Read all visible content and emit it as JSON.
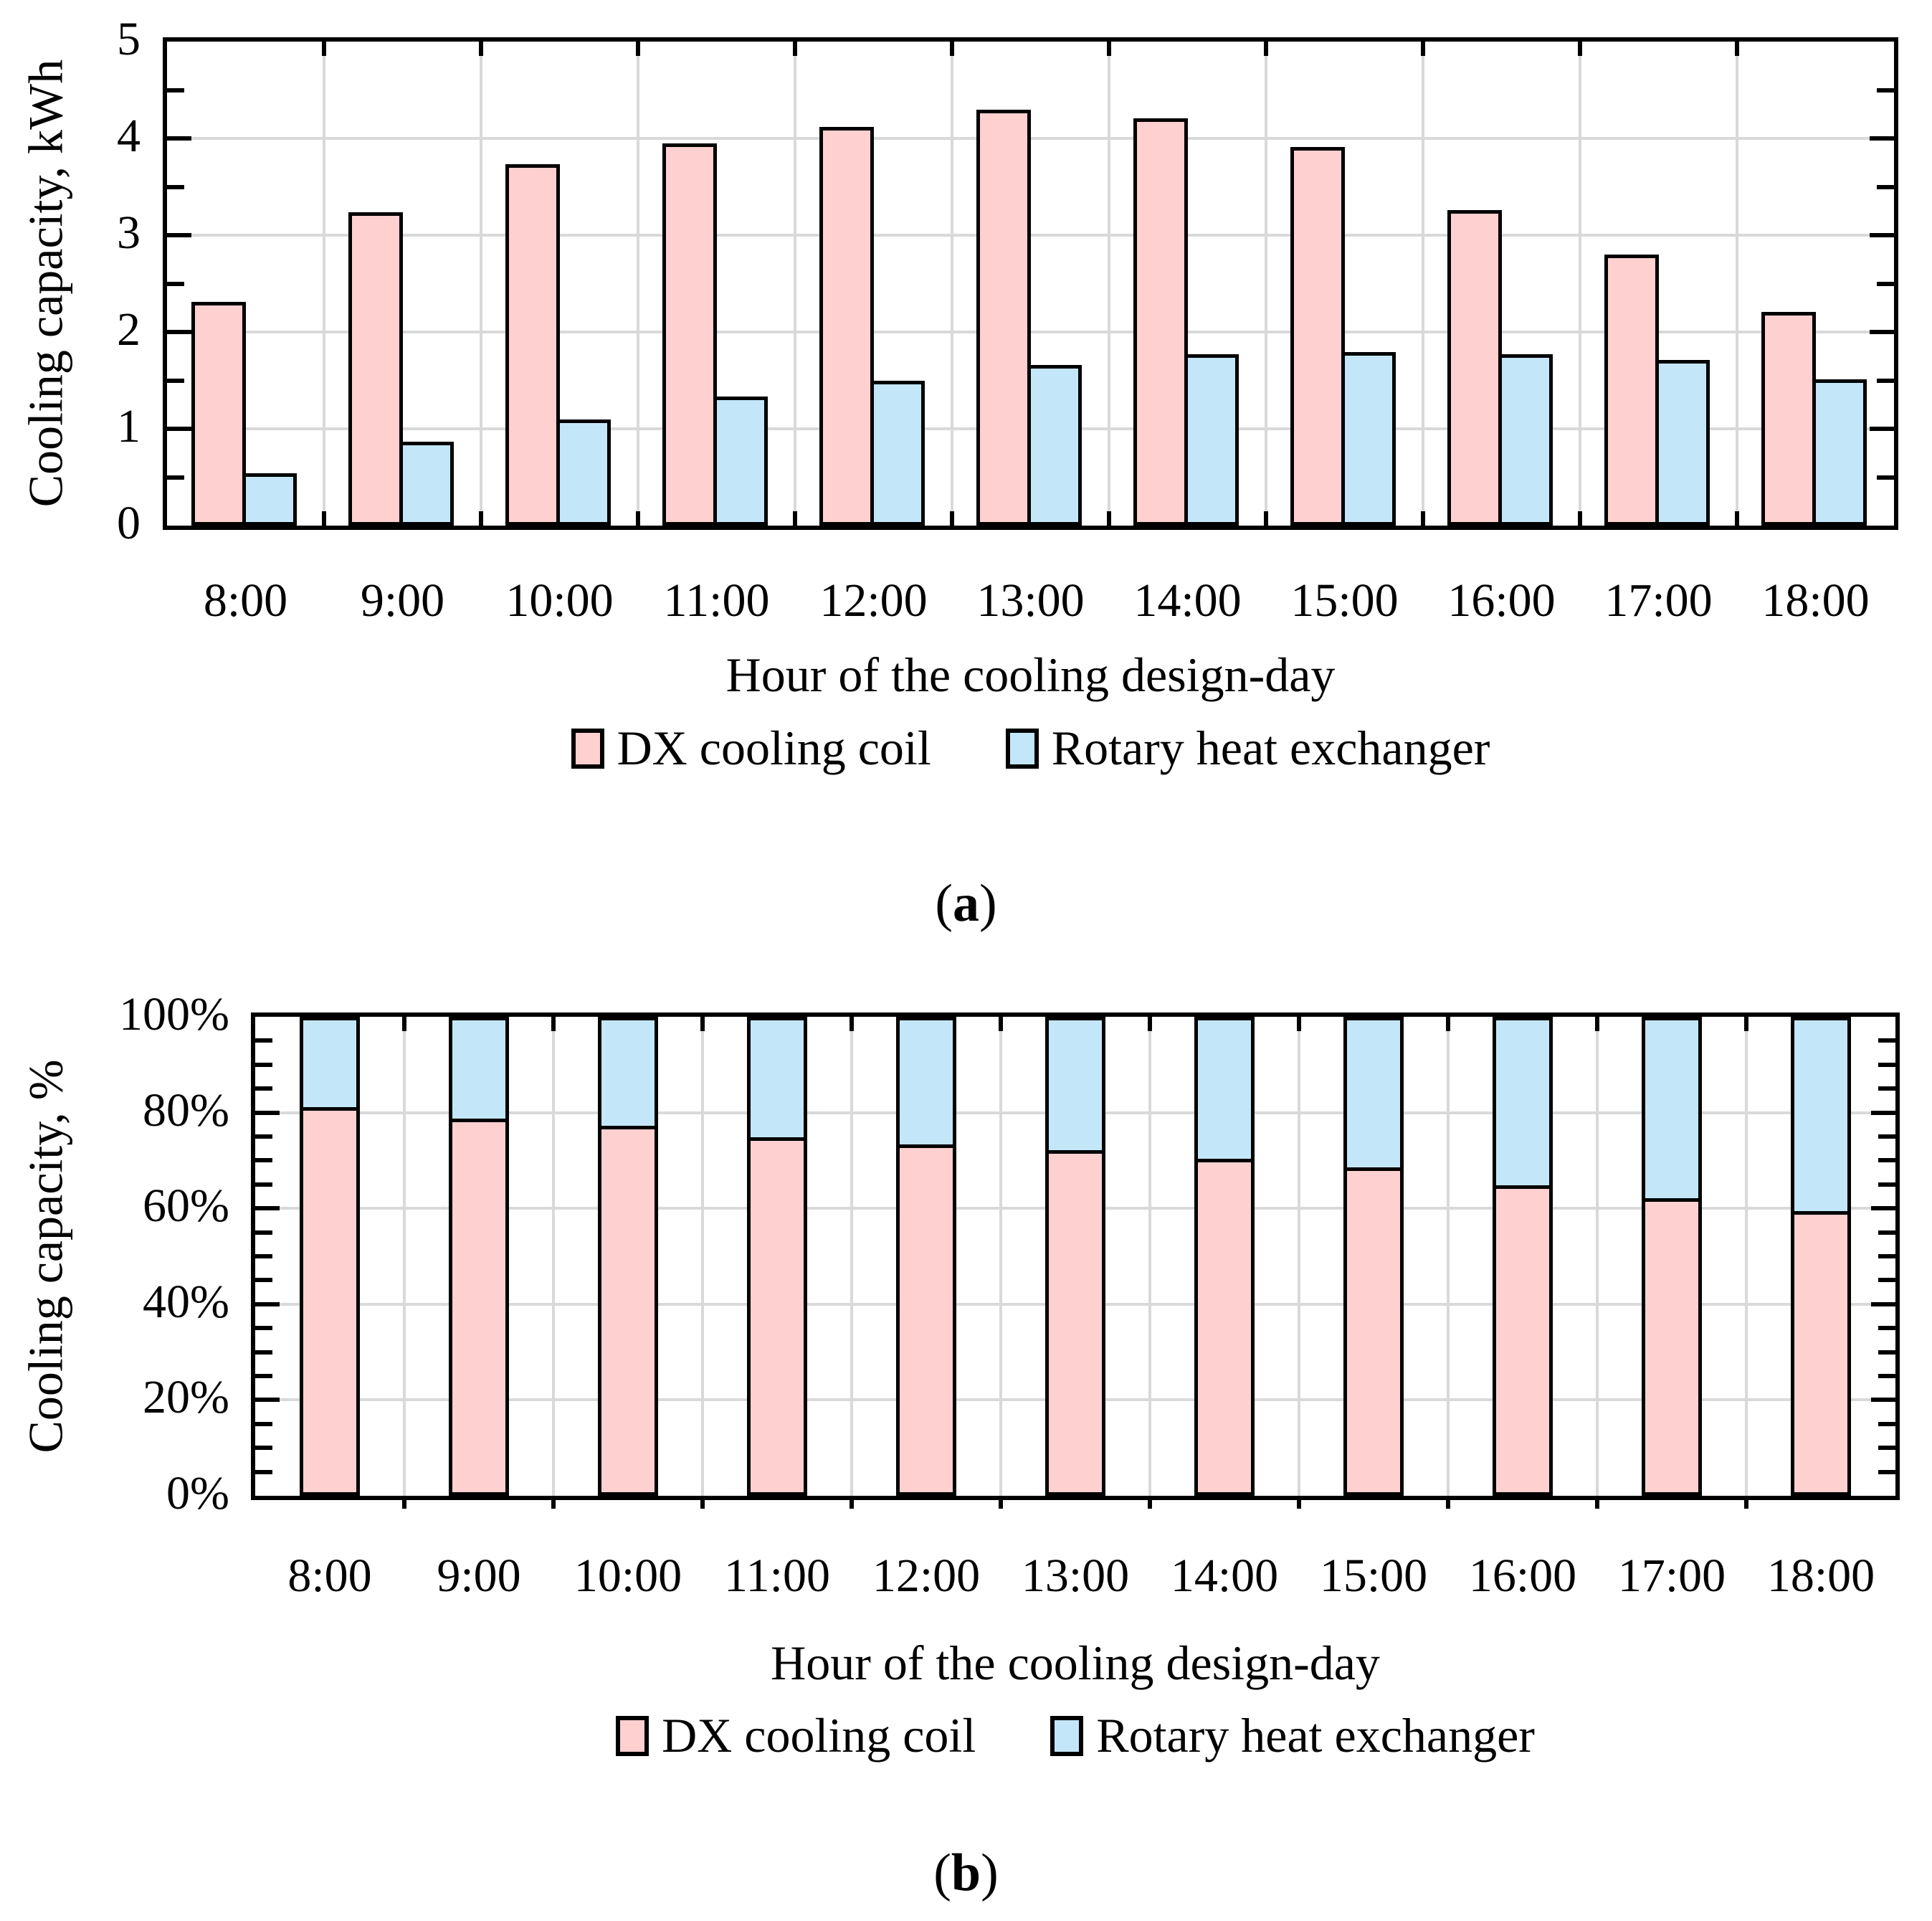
{
  "colors": {
    "dx_fill": "#FFD0D0",
    "rhe_fill": "#C3E7F9",
    "gridline": "#D9D9D9",
    "axis": "#000000"
  },
  "chart_data": [
    {
      "id": "a",
      "type": "bar",
      "title": "",
      "xlabel": "Hour of the cooling design-day",
      "ylabel": "Cooling capacity, kWh",
      "categories": [
        "8:00",
        "9:00",
        "10:00",
        "11:00",
        "12:00",
        "13:00",
        "14:00",
        "15:00",
        "16:00",
        "17:00",
        "18:00"
      ],
      "series": [
        {
          "name": "DX cooling coil",
          "color": "#FFD0D0",
          "values": [
            2.31,
            3.24,
            3.73,
            3.95,
            4.12,
            4.3,
            4.21,
            3.91,
            3.26,
            2.8,
            2.21
          ]
        },
        {
          "name": "Rotary heat exchanger",
          "color": "#C3E7F9",
          "values": [
            0.54,
            0.87,
            1.1,
            1.33,
            1.5,
            1.66,
            1.77,
            1.79,
            1.77,
            1.71,
            1.51
          ]
        }
      ],
      "ylim": [
        0,
        5
      ],
      "ytick_step": 1,
      "yminor_step": 0.5,
      "ytick_labels": [
        "0",
        "1",
        "2",
        "3",
        "4",
        "5"
      ],
      "grid": true,
      "legend_position": "bottom",
      "caption_open": "(",
      "caption_letter": "a",
      "caption_close": ")"
    },
    {
      "id": "b",
      "type": "stacked-bar-100",
      "title": "",
      "xlabel": "Hour of the cooling design-day",
      "ylabel": "Cooling capacity, %",
      "categories": [
        "8:00",
        "9:00",
        "10:00",
        "11:00",
        "12:00",
        "13:00",
        "14:00",
        "15:00",
        "16:00",
        "17:00",
        "18:00"
      ],
      "series": [
        {
          "name": "DX cooling coil",
          "color": "#FFD0D0",
          "values_pct": [
            81.1,
            78.8,
            77.2,
            74.8,
            73.3,
            72.1,
            70.4,
            68.6,
            64.8,
            62.1,
            59.5
          ]
        },
        {
          "name": "Rotary heat exchanger",
          "color": "#C3E7F9",
          "values_pct": [
            18.9,
            21.2,
            22.8,
            25.2,
            26.7,
            27.9,
            29.6,
            31.4,
            35.2,
            37.9,
            40.5
          ]
        }
      ],
      "ylim_pct": [
        0,
        100
      ],
      "ytick_step_pct": 20,
      "yminor_step_pct": 5,
      "ytick_labels": [
        "0%",
        "20%",
        "40%",
        "60%",
        "80%",
        "100%"
      ],
      "grid": true,
      "legend_position": "bottom",
      "caption_open": "(",
      "caption_letter": "b",
      "caption_close": ")"
    }
  ]
}
